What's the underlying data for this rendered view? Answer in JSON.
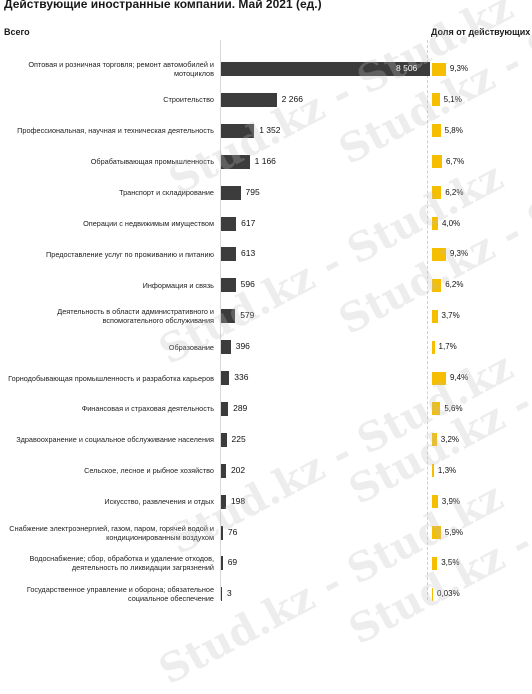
{
  "title": "Действующие иностранные компании. Май 2021 (ед.)",
  "left_header": "Всего",
  "right_header": "Доля от действующих",
  "watermark": "Stud.kz - Stud.kz",
  "colors": {
    "bar": "#3c3c3c",
    "share": "#f5be00"
  },
  "chart_data": {
    "type": "bar",
    "orientation": "horizontal",
    "categories": [
      "Оптовая и розничная торговля; ремонт автомобилей и мотоциклов",
      "Строительство",
      "Профессиональная, научная и техническая деятельность",
      "Обрабатывающая промышленность",
      "Транспорт и складирование",
      "Операции с недвижимым имуществом",
      "Предоставление услуг по проживанию и питанию",
      "Информация и связь",
      "Деятельность в области административного и вспомогательного обслуживания",
      "Образование",
      "Горнодобывающая промышленность и разработка карьеров",
      "Финансовая и страховая деятельность",
      "Здравоохранение и социальное обслуживание населения",
      "Сельское, лесное и рыбное хозяйство",
      "Искусство, развлечения и отдых",
      "Снабжение электроэнергией, газом, паром, горячей водой и кондиционированным воздухом",
      "Водоснабжение; сбор, обработка и удаление отходов, деятельность по ликвидации загрязнений",
      "Государственное управление и оборона; обязательное социальное обеспечение"
    ],
    "values": [
      8506,
      2266,
      1352,
      1166,
      795,
      617,
      613,
      596,
      579,
      396,
      336,
      289,
      225,
      202,
      198,
      76,
      69,
      3
    ],
    "value_labels": [
      "8 506",
      "2 266",
      "1 352",
      "1 166",
      "795",
      "617",
      "613",
      "596",
      "579",
      "396",
      "336",
      "289",
      "225",
      "202",
      "198",
      "76",
      "69",
      "3"
    ],
    "shares": [
      9.3,
      5.1,
      5.8,
      6.7,
      6.2,
      4.0,
      9.3,
      6.2,
      3.7,
      1.7,
      9.4,
      5.6,
      3.2,
      1.3,
      3.9,
      5.9,
      3.5,
      0.03
    ],
    "share_labels": [
      "9,3%",
      "5,1%",
      "5,8%",
      "6,7%",
      "6,2%",
      "4,0%",
      "9,3%",
      "6,2%",
      "3,7%",
      "1,7%",
      "9,4%",
      "5,6%",
      "3,2%",
      "1,3%",
      "3,9%",
      "5,9%",
      "3,5%",
      "0,03%"
    ],
    "xlim": [
      0,
      8506
    ],
    "share_xlim": [
      0,
      9.4
    ],
    "grid": false,
    "legend": "none"
  }
}
